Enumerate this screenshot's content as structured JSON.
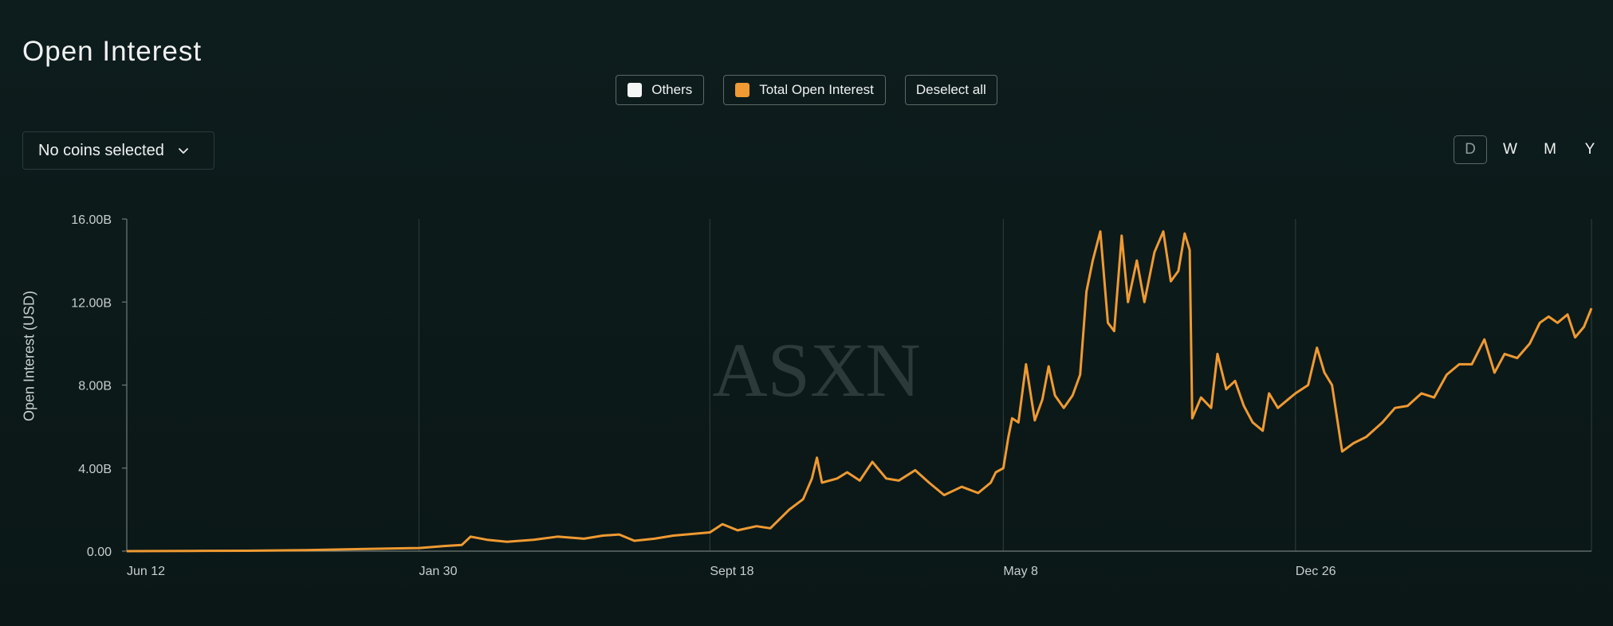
{
  "header": {
    "title": "Open Interest"
  },
  "legend": {
    "items": [
      {
        "label": "Others",
        "color": "#f4f5f5"
      },
      {
        "label": "Total Open Interest",
        "color": "#ef9a32"
      }
    ],
    "deselect_label": "Deselect all"
  },
  "coin_selector": {
    "label": "No coins selected",
    "icon": "chevron-down-icon"
  },
  "period": {
    "options": [
      "D",
      "W",
      "M",
      "Y"
    ],
    "active": "D"
  },
  "watermark": "ASXN",
  "colors": {
    "line": "#ef9a32",
    "grid": "#2a3938",
    "axis": "#c7cfcd"
  },
  "chart_data": {
    "type": "line",
    "ylabel": "Open Interest (USD)",
    "xlabel": "",
    "title": "",
    "ylim": [
      0,
      16
    ],
    "y_unit": "B",
    "y_ticks": [
      "0.00",
      "4.00B",
      "8.00B",
      "12.00B",
      "16.00B"
    ],
    "x_ticks": [
      "Jun 12",
      "Jan 30",
      "Sept 18",
      "May 8",
      "Dec 26"
    ],
    "grid": "vertical at x ticks",
    "legend_position": "top-center",
    "series": [
      {
        "name": "Total Open Interest",
        "color": "#ef9a32",
        "points": [
          [
            "2022-06-12",
            0.0
          ],
          [
            "2022-08-01",
            0.01
          ],
          [
            "2022-09-15",
            0.02
          ],
          [
            "2022-11-01",
            0.05
          ],
          [
            "2022-12-15",
            0.1
          ],
          [
            "2023-01-30",
            0.15
          ],
          [
            "2023-02-20",
            0.25
          ],
          [
            "2023-03-05",
            0.3
          ],
          [
            "2023-03-12",
            0.7
          ],
          [
            "2023-03-25",
            0.55
          ],
          [
            "2023-04-10",
            0.45
          ],
          [
            "2023-05-01",
            0.55
          ],
          [
            "2023-05-20",
            0.7
          ],
          [
            "2023-06-10",
            0.6
          ],
          [
            "2023-06-25",
            0.75
          ],
          [
            "2023-07-08",
            0.8
          ],
          [
            "2023-07-20",
            0.5
          ],
          [
            "2023-08-05",
            0.6
          ],
          [
            "2023-08-20",
            0.75
          ],
          [
            "2023-09-18",
            0.9
          ],
          [
            "2023-09-28",
            1.3
          ],
          [
            "2023-10-10",
            1.0
          ],
          [
            "2023-10-25",
            1.2
          ],
          [
            "2023-11-05",
            1.1
          ],
          [
            "2023-11-20",
            2.0
          ],
          [
            "2023-12-01",
            2.5
          ],
          [
            "2023-12-08",
            3.5
          ],
          [
            "2023-12-12",
            4.5
          ],
          [
            "2023-12-16",
            3.3
          ],
          [
            "2023-12-28",
            3.5
          ],
          [
            "2024-01-05",
            3.8
          ],
          [
            "2024-01-15",
            3.4
          ],
          [
            "2024-01-25",
            4.3
          ],
          [
            "2024-02-05",
            3.5
          ],
          [
            "2024-02-15",
            3.4
          ],
          [
            "2024-02-28",
            3.9
          ],
          [
            "2024-03-10",
            3.3
          ],
          [
            "2024-03-22",
            2.7
          ],
          [
            "2024-04-05",
            3.1
          ],
          [
            "2024-04-18",
            2.8
          ],
          [
            "2024-04-28",
            3.3
          ],
          [
            "2024-05-02",
            3.8
          ],
          [
            "2024-05-08",
            4.0
          ],
          [
            "2024-05-12",
            5.5
          ],
          [
            "2024-05-15",
            6.4
          ],
          [
            "2024-05-20",
            6.2
          ],
          [
            "2024-05-26",
            9.0
          ],
          [
            "2024-06-02",
            6.3
          ],
          [
            "2024-06-08",
            7.3
          ],
          [
            "2024-06-13",
            8.9
          ],
          [
            "2024-06-18",
            7.5
          ],
          [
            "2024-06-25",
            6.9
          ],
          [
            "2024-07-02",
            7.5
          ],
          [
            "2024-07-08",
            8.5
          ],
          [
            "2024-07-13",
            12.5
          ],
          [
            "2024-07-18",
            14.0
          ],
          [
            "2024-07-24",
            15.4
          ],
          [
            "2024-07-30",
            11.0
          ],
          [
            "2024-08-04",
            10.6
          ],
          [
            "2024-08-10",
            15.2
          ],
          [
            "2024-08-15",
            12.0
          ],
          [
            "2024-08-22",
            14.0
          ],
          [
            "2024-08-28",
            12.0
          ],
          [
            "2024-09-05",
            14.4
          ],
          [
            "2024-09-12",
            15.4
          ],
          [
            "2024-09-18",
            13.0
          ],
          [
            "2024-09-24",
            13.5
          ],
          [
            "2024-09-29",
            15.3
          ],
          [
            "2024-10-03",
            14.5
          ],
          [
            "2024-10-05",
            6.4
          ],
          [
            "2024-10-12",
            7.4
          ],
          [
            "2024-10-20",
            6.9
          ],
          [
            "2024-10-25",
            9.5
          ],
          [
            "2024-11-01",
            7.8
          ],
          [
            "2024-11-08",
            8.2
          ],
          [
            "2024-11-15",
            7.0
          ],
          [
            "2024-11-22",
            6.2
          ],
          [
            "2024-11-30",
            5.8
          ],
          [
            "2024-12-05",
            7.6
          ],
          [
            "2024-12-12",
            6.9
          ],
          [
            "2024-12-20",
            7.3
          ],
          [
            "2024-12-26",
            7.6
          ],
          [
            "2025-01-05",
            8.0
          ],
          [
            "2025-01-12",
            9.8
          ],
          [
            "2025-01-18",
            8.6
          ],
          [
            "2025-01-24",
            8.0
          ],
          [
            "2025-02-01",
            4.8
          ],
          [
            "2025-02-10",
            5.2
          ],
          [
            "2025-02-20",
            5.5
          ],
          [
            "2025-03-05",
            6.2
          ],
          [
            "2025-03-15",
            6.9
          ],
          [
            "2025-03-25",
            7.0
          ],
          [
            "2025-04-05",
            7.6
          ],
          [
            "2025-04-15",
            7.4
          ],
          [
            "2025-04-25",
            8.5
          ],
          [
            "2025-05-05",
            9.0
          ],
          [
            "2025-05-15",
            9.0
          ],
          [
            "2025-05-25",
            10.2
          ],
          [
            "2025-06-02",
            8.6
          ],
          [
            "2025-06-10",
            9.5
          ],
          [
            "2025-06-20",
            9.3
          ],
          [
            "2025-06-30",
            10.0
          ],
          [
            "2025-07-08",
            11.0
          ],
          [
            "2025-07-15",
            11.3
          ],
          [
            "2025-07-22",
            11.0
          ],
          [
            "2025-07-30",
            11.4
          ],
          [
            "2025-08-05",
            10.3
          ],
          [
            "2025-08-12",
            10.8
          ],
          [
            "2025-08-18",
            11.7
          ]
        ]
      }
    ]
  }
}
